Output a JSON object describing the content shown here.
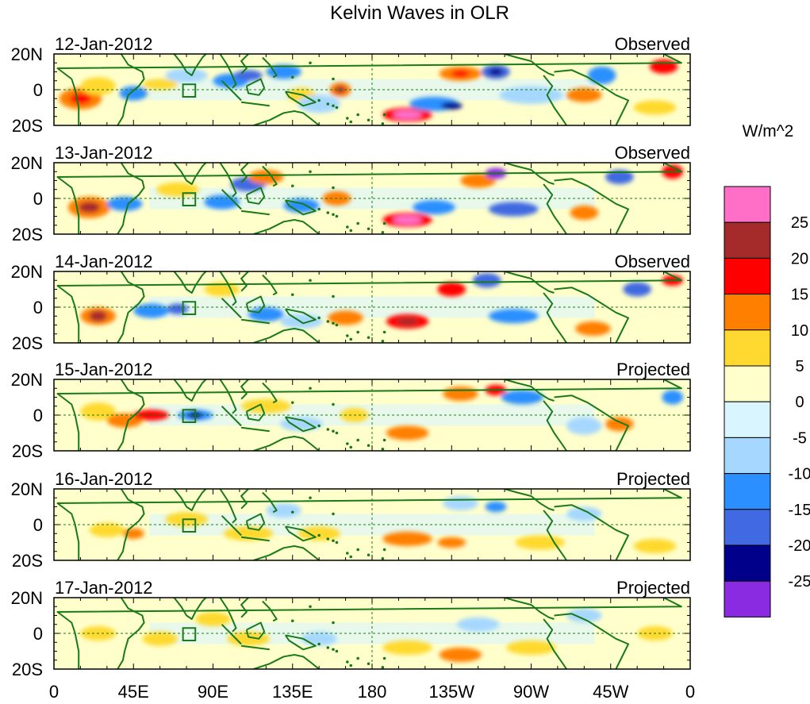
{
  "chart_data": {
    "type": "heatmap",
    "title": "Kelvin Waves in OLR",
    "units_label": "W/m^2",
    "panels": [
      {
        "date": "12-Jan-2012",
        "status": "Observed"
      },
      {
        "date": "13-Jan-2012",
        "status": "Observed"
      },
      {
        "date": "14-Jan-2012",
        "status": "Observed"
      },
      {
        "date": "15-Jan-2012",
        "status": "Projected"
      },
      {
        "date": "16-Jan-2012",
        "status": "Projected"
      },
      {
        "date": "17-Jan-2012",
        "status": "Projected"
      }
    ],
    "y_tick_labels": [
      "20N",
      "0",
      "20S"
    ],
    "y_range_deg": [
      -20,
      20
    ],
    "x_range_deg_east": [
      0,
      360
    ],
    "x_tick_labels": [
      "0",
      "45E",
      "90E",
      "135E",
      "180",
      "135W",
      "90W",
      "45W",
      "0"
    ],
    "colorbar": {
      "colors": [
        "#ff6ec7",
        "#a52a2a",
        "#ff0000",
        "#ff7f00",
        "#ffd92f",
        "#ffffcc",
        "#d9f5ff",
        "#a6d8ff",
        "#2b8fff",
        "#4169e1",
        "#00008b",
        "#8a2be2"
      ],
      "tick_labels": [
        "25",
        "20",
        "15",
        "10",
        "5",
        "0",
        "-5",
        "-10",
        "-15",
        "-20",
        "-25"
      ]
    }
  }
}
